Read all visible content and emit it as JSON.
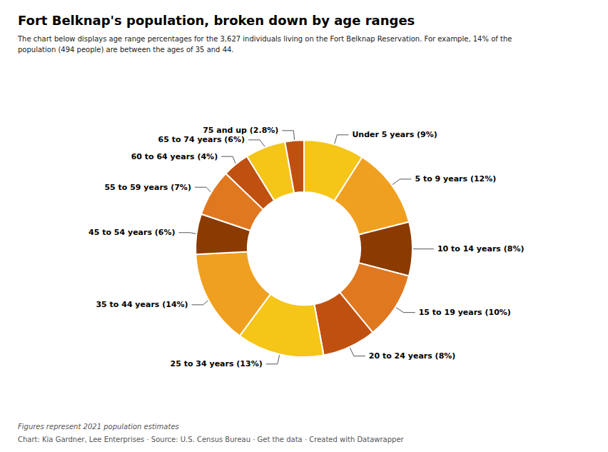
{
  "chart_data": {
    "type": "pie",
    "title": "Fort Belknap's population, broken down by age ranges",
    "subtitle": "The chart below displays age range percentages for the 3,627 individuals living on the Fort Belknap Reservation. For example, 14% of the\npopulation (494 people) are between the ages of 35 and 44.",
    "footnote": "Figures represent 2021 population estimates",
    "credit": "Chart: Kia Gardner, Lee Enterprises · Source: U.S. Census Bureau · Get the data · Created with Datawrapper",
    "categories": [
      "Under 5 years (9%)",
      "5 to 9 years (12%)",
      "10 to 14 years (8%)",
      "15 to 19 years (10%)",
      "20 to 24 years (8%)",
      "25 to 34 years (13%)",
      "35 to 44 years (14%)",
      "45 to 54 years (6%)",
      "55 to 59 years (7%)",
      "60 to 64 years (4%)",
      "65 to 74 years (6%)",
      "75 and up (2.8%)"
    ],
    "values": [
      9,
      12,
      8,
      10,
      8,
      13,
      14,
      6,
      7,
      4,
      6,
      2.8
    ],
    "colors": [
      "#F5C518",
      "#F0A020",
      "#8B3A00",
      "#E07820",
      "#C05010",
      "#F5C518",
      "#F0A020",
      "#8B3A00",
      "#E07820",
      "#C05010",
      "#F5C518",
      "#C05010"
    ],
    "legend": false
  }
}
